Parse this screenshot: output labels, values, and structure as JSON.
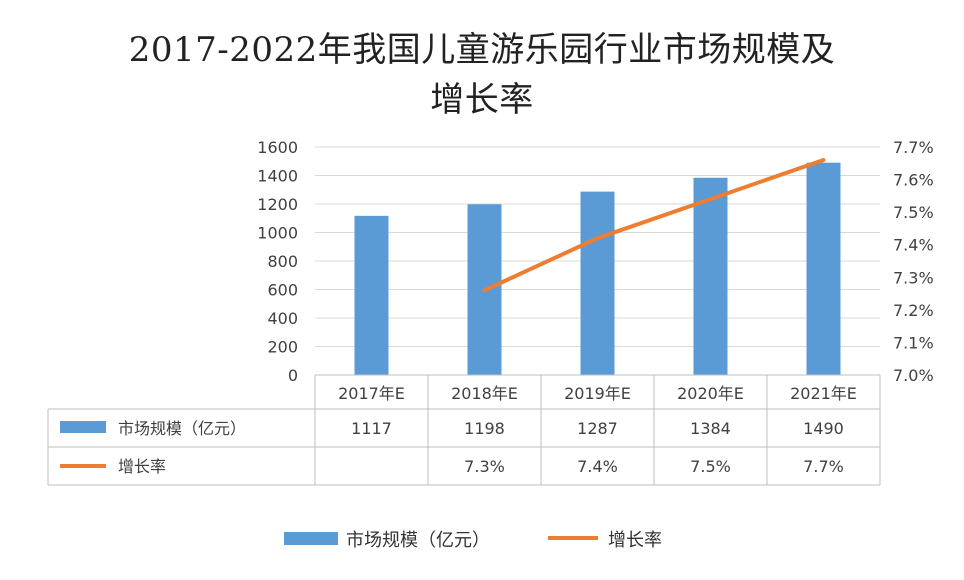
{
  "chart_data": {
    "type": "bar",
    "title_line1": "2017-2022年我国儿童游乐园行业市场规模及",
    "title_line2": "增长率",
    "categories": [
      "2017年E",
      "2018年E",
      "2019年E",
      "2020年E",
      "2021年E"
    ],
    "series": [
      {
        "name": "市场规模（亿元）",
        "type": "bar",
        "axis": "left",
        "values": [
          1117,
          1198,
          1287,
          1384,
          1490
        ],
        "labels": [
          "1117",
          "1198",
          "1287",
          "1384",
          "1490"
        ],
        "color": "#5b9bd5"
      },
      {
        "name": "增长率",
        "type": "line",
        "axis": "right",
        "values": [
          null,
          7.26,
          7.42,
          7.54,
          7.66
        ],
        "labels": [
          "",
          "7.3%",
          "7.4%",
          "7.5%",
          "7.7%"
        ],
        "color": "#ed7d31"
      }
    ],
    "ylim_left": [
      0,
      1600
    ],
    "yticks_left": [
      "0",
      "200",
      "400",
      "600",
      "800",
      "1000",
      "1200",
      "1400",
      "1600"
    ],
    "ylim_right": [
      7.0,
      7.7
    ],
    "yticks_right": [
      "7.0%",
      "7.1%",
      "7.2%",
      "7.3%",
      "7.4%",
      "7.5%",
      "7.6%",
      "7.7%"
    ],
    "grid": true,
    "data_table": true,
    "legend_position": "bottom"
  }
}
